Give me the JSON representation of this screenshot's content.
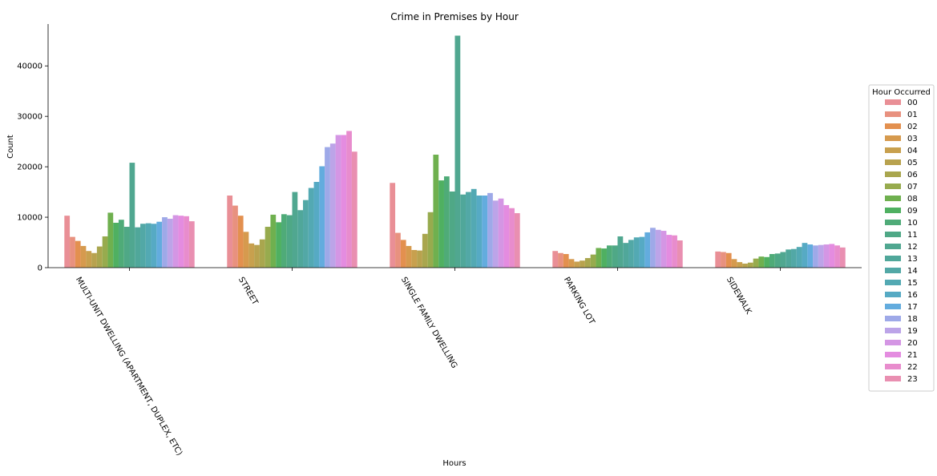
{
  "chart_data": {
    "type": "bar",
    "title": "Crime in Premises by Hour",
    "xlabel": "Hours",
    "ylabel": "Count",
    "ylim": [
      0,
      48300
    ],
    "yticks": [
      0,
      10000,
      20000,
      30000,
      40000
    ],
    "ytick_labels": [
      "0",
      "10000",
      "20000",
      "30000",
      "40000"
    ],
    "categories": [
      "MULTI-UNIT DWELLING (APARTMENT, DUPLEX, ETC)",
      "STREET",
      "SINGLE FAMILY DWELLING",
      "PARKING LOT",
      "SIDEWALK"
    ],
    "legend_title": "Hour Occurred",
    "legend_position": "center-right",
    "grid": false,
    "series": [
      {
        "name": "00",
        "color": "#e98f96",
        "values": [
          10300,
          14300,
          16800,
          3300,
          3200
        ]
      },
      {
        "name": "01",
        "color": "#e8917f",
        "values": [
          6100,
          12300,
          6900,
          2900,
          3100
        ]
      },
      {
        "name": "02",
        "color": "#e3904f",
        "values": [
          5300,
          10300,
          5500,
          2700,
          2900
        ]
      },
      {
        "name": "03",
        "color": "#d69a4e",
        "values": [
          4300,
          7100,
          4300,
          1700,
          1700
        ]
      },
      {
        "name": "04",
        "color": "#c8a04e",
        "values": [
          3300,
          4800,
          3500,
          1200,
          1100
        ]
      },
      {
        "name": "05",
        "color": "#b8a24e",
        "values": [
          2900,
          4500,
          3400,
          1400,
          800
        ]
      },
      {
        "name": "06",
        "color": "#a9a64e",
        "values": [
          4200,
          5600,
          6700,
          1900,
          1000
        ]
      },
      {
        "name": "07",
        "color": "#97ab4e",
        "values": [
          6200,
          8100,
          11000,
          2600,
          1800
        ]
      },
      {
        "name": "08",
        "color": "#6fb04f",
        "values": [
          10900,
          10500,
          22400,
          3900,
          2200
        ]
      },
      {
        "name": "09",
        "color": "#4fb061",
        "values": [
          8900,
          9000,
          17300,
          3800,
          2100
        ]
      },
      {
        "name": "10",
        "color": "#4fab78",
        "values": [
          9500,
          10600,
          18100,
          4400,
          2700
        ]
      },
      {
        "name": "11",
        "color": "#4fa886",
        "values": [
          8100,
          10400,
          15100,
          4400,
          2800
        ]
      },
      {
        "name": "12",
        "color": "#50a790",
        "values": [
          20800,
          15000,
          46000,
          6200,
          3100
        ]
      },
      {
        "name": "13",
        "color": "#50a79a",
        "values": [
          8000,
          11400,
          14500,
          4900,
          3600
        ]
      },
      {
        "name": "14",
        "color": "#52a8a6",
        "values": [
          8700,
          13400,
          15000,
          5500,
          3700
        ]
      },
      {
        "name": "15",
        "color": "#53a9b3",
        "values": [
          8800,
          15800,
          15600,
          6000,
          4100
        ]
      },
      {
        "name": "16",
        "color": "#56aac4",
        "values": [
          8700,
          17000,
          14300,
          6100,
          4900
        ]
      },
      {
        "name": "17",
        "color": "#63acde",
        "values": [
          9100,
          20100,
          14300,
          7000,
          4600
        ]
      },
      {
        "name": "18",
        "color": "#9ea9e8",
        "values": [
          10000,
          23900,
          14800,
          7900,
          4400
        ]
      },
      {
        "name": "19",
        "color": "#bca4e8",
        "values": [
          9700,
          24600,
          13300,
          7500,
          4500
        ]
      },
      {
        "name": "20",
        "color": "#d496e4",
        "values": [
          10400,
          26300,
          13700,
          7300,
          4600
        ]
      },
      {
        "name": "21",
        "color": "#e48ce0",
        "values": [
          10300,
          26300,
          12400,
          6500,
          4700
        ]
      },
      {
        "name": "22",
        "color": "#e88ccd",
        "values": [
          10200,
          27100,
          11800,
          6400,
          4400
        ]
      },
      {
        "name": "23",
        "color": "#e98fb1",
        "values": [
          9200,
          23000,
          10800,
          5400,
          4000
        ]
      }
    ]
  }
}
